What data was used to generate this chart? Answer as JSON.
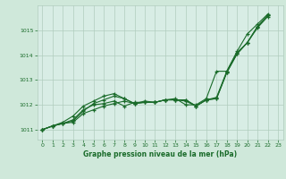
{
  "title": "Graphe pression niveau de la mer (hPa)",
  "background_color": "#cfe8da",
  "plot_bg_color": "#d8ede5",
  "grid_color": "#b0ccbe",
  "line_color": "#1a6b2a",
  "xlim": [
    -0.5,
    23.5
  ],
  "ylim": [
    1010.6,
    1016.0
  ],
  "yticks": [
    1011,
    1012,
    1013,
    1014,
    1015
  ],
  "xticks": [
    0,
    1,
    2,
    3,
    4,
    5,
    6,
    7,
    8,
    9,
    10,
    11,
    12,
    13,
    14,
    15,
    16,
    17,
    18,
    19,
    20,
    21,
    22,
    23
  ],
  "series": [
    [
      1011.0,
      1011.15,
      1011.25,
      1011.3,
      1011.65,
      1011.8,
      1011.95,
      1012.05,
      1012.15,
      1012.05,
      1012.1,
      1012.1,
      1012.2,
      1012.2,
      1012.2,
      1011.95,
      1012.2,
      1012.25,
      1013.3,
      1014.05,
      1014.5,
      1015.1,
      1015.55
    ],
    [
      1011.0,
      1011.15,
      1011.25,
      1011.35,
      1011.75,
      1012.05,
      1012.2,
      1012.35,
      1012.25,
      1012.05,
      1012.1,
      1012.1,
      1012.2,
      1012.2,
      1012.15,
      1011.95,
      1012.2,
      1012.25,
      1013.3,
      1014.05,
      1014.5,
      1015.15,
      1015.6
    ],
    [
      1011.0,
      1011.15,
      1011.25,
      1011.4,
      1011.8,
      1012.0,
      1012.05,
      1012.15,
      1011.95,
      1012.1,
      1012.1,
      1012.1,
      1012.2,
      1012.2,
      1012.2,
      1011.95,
      1012.2,
      1012.3,
      1013.35,
      1014.1,
      1014.5,
      1015.15,
      1015.6
    ],
    [
      1011.0,
      1011.15,
      1011.3,
      1011.55,
      1011.95,
      1012.15,
      1012.35,
      1012.45,
      1012.25,
      1012.05,
      1012.15,
      1012.1,
      1012.2,
      1012.25,
      1012.0,
      1012.0,
      1012.25,
      1013.35,
      1013.35,
      1014.15,
      1014.85,
      1015.25,
      1015.65
    ]
  ]
}
